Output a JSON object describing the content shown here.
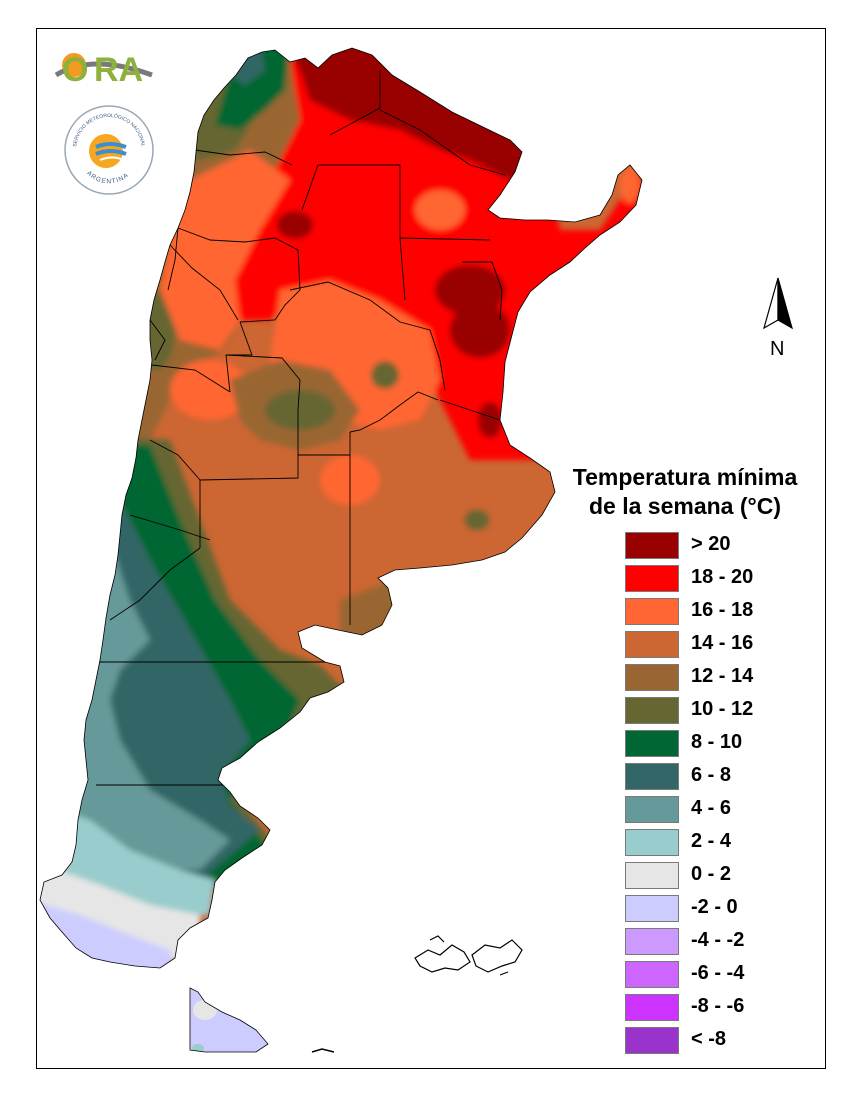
{
  "legend": {
    "title_line1": "Temperatura mínima",
    "title_line2": "de la semana (°C)",
    "items": [
      {
        "label": "> 20",
        "color": "#990000"
      },
      {
        "label": "18 - 20",
        "color": "#ff0000"
      },
      {
        "label": "16 - 18",
        "color": "#ff6633"
      },
      {
        "label": "14 - 16",
        "color": "#cc6633"
      },
      {
        "label": "12 - 14",
        "color": "#996633"
      },
      {
        "label": "10 - 12",
        "color": "#666633"
      },
      {
        "label": "8 - 10",
        "color": "#006633"
      },
      {
        "label": "6 - 8",
        "color": "#336666"
      },
      {
        "label": "4 - 6",
        "color": "#669999"
      },
      {
        "label": "2 - 4",
        "color": "#99cccc"
      },
      {
        "label": "0 - 2",
        "color": "#e6e6e6"
      },
      {
        "label": "-2 - 0",
        "color": "#ccccff"
      },
      {
        "label": "-4 - -2",
        "color": "#cc99ff"
      },
      {
        "label": "-6 - -4",
        "color": "#cc66ff"
      },
      {
        "label": "-8 - -6",
        "color": "#cc33ff"
      },
      {
        "label": "< -8",
        "color": "#9933cc"
      }
    ]
  },
  "north_arrow": {
    "label": "N"
  },
  "logos": {
    "ora": {
      "text": "ORA",
      "icon": "ora-logo"
    },
    "smn": {
      "text_top": "SERVICIO METEOROLÓGICO NACIONAL",
      "text_bottom": "ARGENTINA",
      "icon": "smn-logo"
    }
  }
}
